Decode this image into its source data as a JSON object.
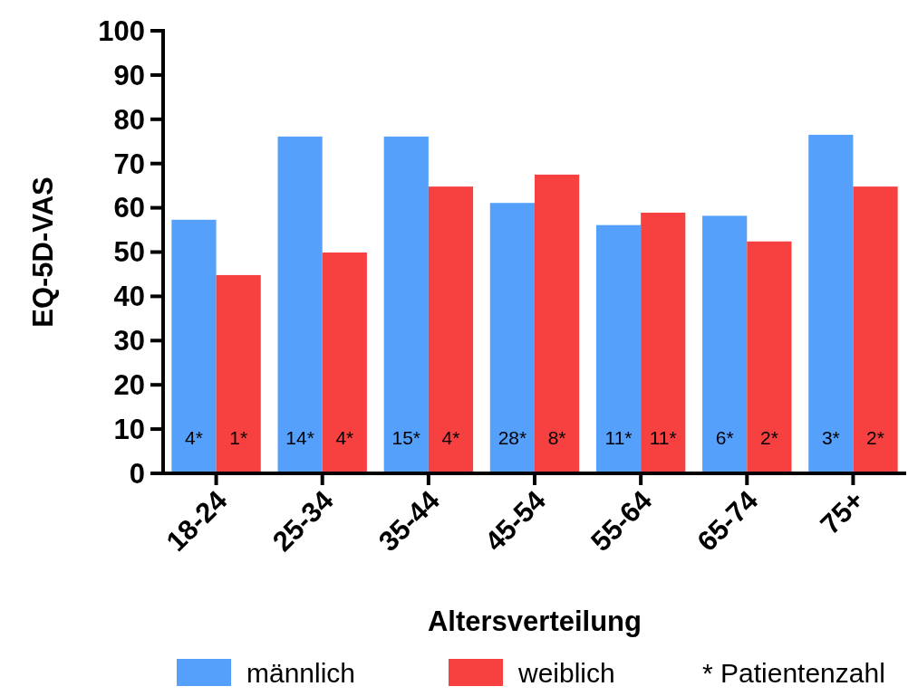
{
  "chart_data": {
    "type": "bar",
    "xlabel": "Altersverteilung",
    "ylabel": "EQ-5D-VAS",
    "categories": [
      "18-24",
      "25-34",
      "35-44",
      "45-54",
      "55-64",
      "65-74",
      "75+"
    ],
    "series": [
      {
        "name": "männlich",
        "color": "#55a0fb",
        "values": [
          57.3,
          76.1,
          76.1,
          61.1,
          56.1,
          58.2,
          76.5
        ]
      },
      {
        "name": "weiblich",
        "color": "#f74040",
        "values": [
          44.8,
          49.9,
          64.8,
          67.5,
          58.9,
          52.4,
          64.8
        ]
      }
    ],
    "ylim": [
      0,
      100
    ],
    "yticks": [
      0,
      10,
      20,
      30,
      40,
      50,
      60,
      70,
      80,
      90,
      100
    ],
    "grid": false,
    "legend": "bottom",
    "annotations": [
      {
        "text": "4*",
        "x": "18-24",
        "y": 8
      },
      {
        "text": "1*",
        "x": "18-24",
        "y": 8
      },
      {
        "text": "14*",
        "x": "25-34",
        "y": 8
      },
      {
        "text": "4*",
        "x": "25-34",
        "y": 8
      },
      {
        "text": "15*",
        "x": "35-44",
        "y": 8
      },
      {
        "text": "4*",
        "x": "35-44",
        "y": 8
      },
      {
        "text": "28*",
        "x": "45-54",
        "y": 8
      },
      {
        "text": "8*",
        "x": "45-54",
        "y": 8
      },
      {
        "text": "11*",
        "x": "55-64",
        "y": 8
      },
      {
        "text": "11*",
        "x": "55-64",
        "y": 8
      },
      {
        "text": "6*",
        "x": "65-74",
        "y": 8
      },
      {
        "text": "2*",
        "x": "65-74",
        "y": 8
      },
      {
        "text": "3*",
        "x": "75+",
        "y": 8
      },
      {
        "text": "2*",
        "x": "75+",
        "y": 8
      },
      "* Patientenzahl"
    ]
  }
}
